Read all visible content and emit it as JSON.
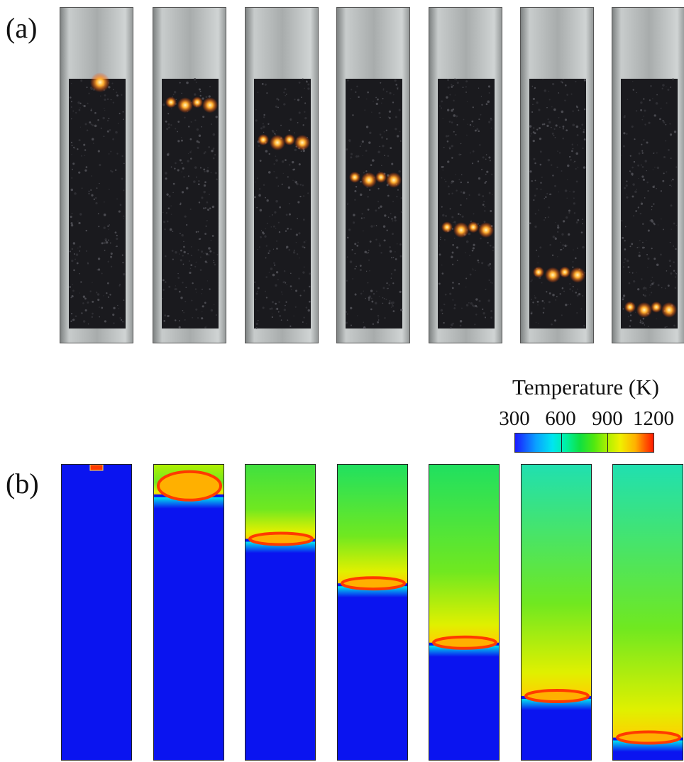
{
  "labels": {
    "panel_a": "(a)",
    "panel_b": "(b)"
  },
  "colorbar": {
    "title": "Temperature (K)",
    "ticks": [
      "300",
      "600",
      "900",
      "1200"
    ],
    "range_K": [
      300,
      1200
    ],
    "colors": [
      "#1a1aff",
      "#0aa0ff",
      "#00e6f0",
      "#10e040",
      "#b0f000",
      "#f0f000",
      "#ffb000",
      "#ff1a00"
    ]
  },
  "colors": {
    "cold": "#0a14f0",
    "front": "#ff3a00",
    "glow": "#ffb030",
    "char_bed": "#1a1a1e",
    "tube_glass": "#b8bcbc"
  },
  "panels": {
    "frames": 7,
    "front_level_fraction": [
      0.02,
      0.1,
      0.25,
      0.4,
      0.6,
      0.78,
      0.92
    ]
  }
}
